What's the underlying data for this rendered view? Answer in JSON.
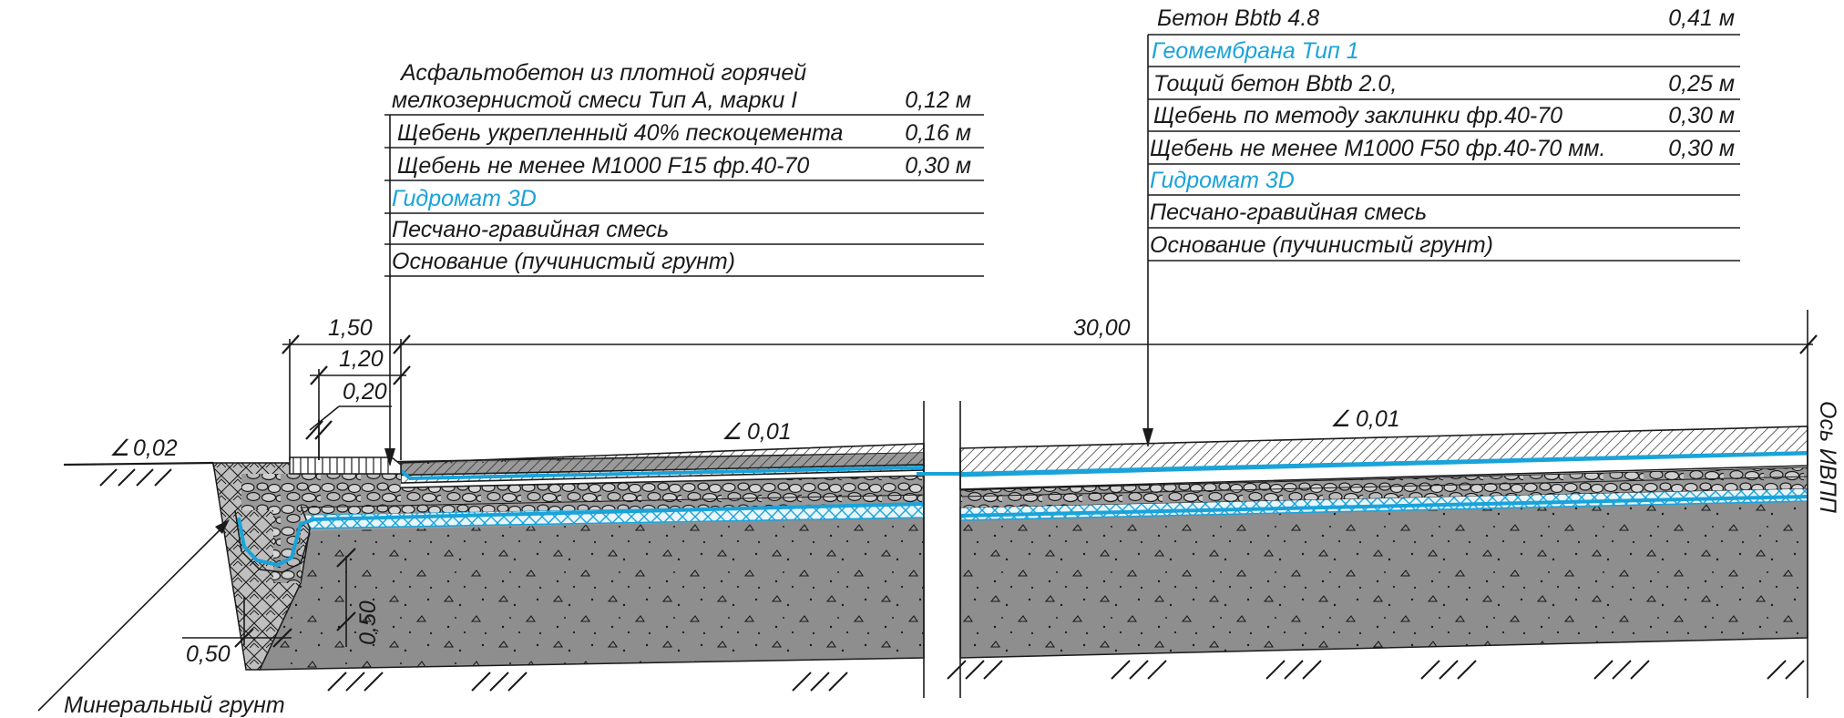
{
  "left_section": {
    "layers": [
      {
        "name": "Асфальтобетон из плотной горячей",
        "name2": "мелкозернистой смеси Тип А, марки I",
        "thickness": "0,12 м",
        "color": "#1a1a1a"
      },
      {
        "name": "Щебень укрепленный 40% пескоцемента",
        "thickness": "0,16 м",
        "color": "#1a1a1a"
      },
      {
        "name": "Щебень не менее М1000 F15 фр.40-70",
        "thickness": "0,30 м",
        "color": "#1a1a1a"
      },
      {
        "name": "Гидромат 3D",
        "thickness": "",
        "color": "#1aa3d9"
      },
      {
        "name": "Песчано-гравийная смесь",
        "thickness": "",
        "color": "#1a1a1a"
      },
      {
        "name": "Основание (пучинистый грунт)",
        "thickness": "",
        "color": "#1a1a1a"
      }
    ]
  },
  "right_section": {
    "layers": [
      {
        "name": "Бетон Bbtb 4.8",
        "thickness": "0,41 м",
        "color": "#1a1a1a"
      },
      {
        "name": "Геомембрана Тип 1",
        "thickness": "",
        "color": "#1aa3d9"
      },
      {
        "name": "Тощий бетон Bbtb 2.0,",
        "thickness": "0,25 м",
        "color": "#1a1a1a"
      },
      {
        "name": "Щебень по методу заклинки фр.40-70",
        "thickness": "0,30 м",
        "color": "#1a1a1a"
      },
      {
        "name": "Щебень не менее М1000 F50 фр.40-70 мм.",
        "thickness": "0,30 м",
        "color": "#1a1a1a"
      },
      {
        "name": "Гидромат 3D",
        "thickness": "",
        "color": "#1aa3d9"
      },
      {
        "name": "Песчано-гравийная смесь",
        "thickness": "",
        "color": "#1a1a1a"
      },
      {
        "name": "Основание (пучинистый грунт)",
        "thickness": "",
        "color": "#1a1a1a"
      }
    ]
  },
  "dimensions": {
    "d1": "1,50",
    "d2": "1,20",
    "d3": "0,20",
    "d4": "30,00",
    "d5": "0,50",
    "d6": "0,50"
  },
  "slopes": {
    "s1": "0,02",
    "s2": "0,01",
    "s3": "0,01",
    "slope_symbol": "∠"
  },
  "labels": {
    "axis": "Ось ИВПП",
    "mineral": "Минеральный грунт"
  },
  "colors": {
    "accent_blue": "#1aa3d9",
    "ground_gray": "#8c8c8c",
    "ink": "#1a1a1a"
  }
}
